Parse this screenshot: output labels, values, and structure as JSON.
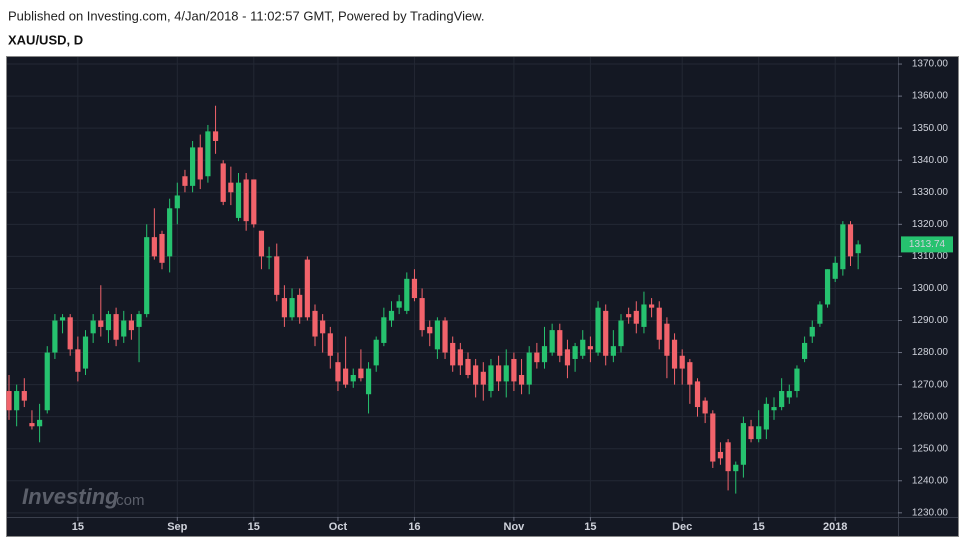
{
  "chart_data": {
    "type": "candlestick",
    "subtitle": "Published on Investing.com, 4/Jan/2018 - 11:02:57 GMT, Powered by TradingView.",
    "title": "XAU/USD, D",
    "watermark": [
      "Investing",
      ".com"
    ],
    "categories": [
      null,
      null,
      null,
      null,
      null,
      null,
      null,
      null,
      null,
      "15",
      null,
      null,
      null,
      null,
      null,
      null,
      null,
      null,
      null,
      null,
      null,
      null,
      "Sep",
      null,
      null,
      null,
      null,
      null,
      null,
      null,
      null,
      null,
      "15",
      null,
      null,
      null,
      null,
      null,
      null,
      null,
      null,
      null,
      null,
      "Oct",
      null,
      null,
      null,
      null,
      null,
      null,
      null,
      null,
      null,
      "16",
      null,
      null,
      null,
      null,
      null,
      null,
      null,
      null,
      null,
      null,
      null,
      null,
      "Nov",
      null,
      null,
      null,
      null,
      null,
      null,
      null,
      null,
      null,
      "15",
      null,
      null,
      null,
      null,
      null,
      null,
      null,
      null,
      null,
      null,
      null,
      "Dec",
      null,
      null,
      null,
      null,
      null,
      null,
      null,
      null,
      null,
      "15",
      null,
      null,
      null,
      null,
      null,
      null,
      null,
      null,
      null,
      "2018",
      null,
      null,
      null
    ],
    "open": [
      1268,
      1262,
      1268,
      1258,
      1257,
      1262,
      1280,
      1290,
      1291,
      1281,
      1275,
      1286,
      1290,
      1287,
      1292,
      1285,
      1290,
      1288,
      1292,
      1316,
      1317,
      1310,
      1325,
      1335,
      1332,
      1344,
      1335,
      1349,
      1339,
      1333,
      1322,
      1334,
      1334,
      1318,
      1310,
      1310,
      1297,
      1291,
      1298,
      1309,
      1293,
      1290,
      1286,
      1277,
      1275,
      1271,
      1275,
      1267,
      1276,
      1283,
      1290,
      1294,
      1293,
      1303,
      1297,
      1288,
      1281,
      1290,
      1283,
      1281,
      1278,
      1276,
      1274,
      1268,
      1276,
      1271,
      1278,
      1273,
      1270,
      1280,
      1277,
      1280,
      1287,
      1281,
      1278,
      1279,
      1282,
      1280,
      1293,
      1279,
      1282,
      1292,
      1293,
      1288,
      1295,
      1294,
      1289,
      1284,
      1279,
      1277,
      1271,
      1265,
      1261,
      1249,
      1252,
      1243,
      1245,
      1257,
      1253,
      1256,
      1262,
      1263,
      1266,
      1268,
      1278,
      1285,
      1289,
      1295,
      1303,
      1306,
      1320,
      1311
    ],
    "high": [
      1273,
      1270,
      1272,
      1262,
      1264,
      1282,
      1292,
      1292,
      1292,
      1285,
      1287,
      1292,
      1301,
      1293,
      1294,
      1293,
      1292,
      1293,
      1320,
      1325,
      1318,
      1328,
      1333,
      1337,
      1346,
      1348,
      1351,
      1357,
      1340,
      1338,
      1336,
      1336,
      1334,
      1318,
      1313,
      1314,
      1301,
      1300,
      1300,
      1310,
      1295,
      1292,
      1288,
      1280,
      1285,
      1275,
      1281,
      1277,
      1285,
      1294,
      1296,
      1298,
      1305,
      1306,
      1300,
      1290,
      1291,
      1291,
      1285,
      1283,
      1280,
      1278,
      1277,
      1278,
      1279,
      1281,
      1280,
      1278,
      1282,
      1283,
      1288,
      1289,
      1289,
      1284,
      1283,
      1287,
      1285,
      1296,
      1295,
      1287,
      1292,
      1294,
      1296,
      1299,
      1297,
      1296,
      1291,
      1286,
      1281,
      1278,
      1272,
      1266,
      1262,
      1252,
      1253,
      1246,
      1260,
      1259,
      1262,
      1266,
      1266,
      1272,
      1270,
      1276,
      1285,
      1290,
      1296,
      1306,
      1310,
      1321,
      1321,
      1315
    ],
    "low": [
      1259,
      1257,
      1263,
      1256,
      1252,
      1261,
      1278,
      1286,
      1279,
      1271,
      1273,
      1283,
      1285,
      1283,
      1282,
      1283,
      1284,
      1277,
      1291,
      1309,
      1306,
      1305,
      1320,
      1330,
      1330,
      1331,
      1333,
      1342,
      1326,
      1326,
      1321,
      1318,
      1319,
      1306,
      1306,
      1296,
      1288,
      1290,
      1289,
      1290,
      1282,
      1280,
      1275,
      1268,
      1269,
      1269,
      1271,
      1261,
      1274,
      1282,
      1288,
      1292,
      1292,
      1296,
      1285,
      1282,
      1278,
      1278,
      1274,
      1273,
      1272,
      1266,
      1265,
      1266,
      1268,
      1266,
      1268,
      1267,
      1267,
      1275,
      1275,
      1279,
      1277,
      1272,
      1274,
      1278,
      1277,
      1279,
      1276,
      1277,
      1280,
      1289,
      1286,
      1286,
      1291,
      1281,
      1272,
      1270,
      1270,
      1264,
      1260,
      1258,
      1244,
      1245,
      1237,
      1236,
      1241,
      1252,
      1252,
      1253,
      1259,
      1262,
      1264,
      1266,
      1277,
      1283,
      1288,
      1294,
      1302,
      1304,
      1307,
      1306
    ],
    "close": [
      1262,
      1268,
      1265,
      1257,
      1259,
      1280,
      1290,
      1291,
      1281,
      1274,
      1285,
      1290,
      1288,
      1292,
      1284,
      1290,
      1287,
      1292,
      1316,
      1310,
      1308,
      1325,
      1329,
      1332,
      1344,
      1334,
      1349,
      1346,
      1327,
      1330,
      1333,
      1321,
      1320,
      1310,
      1310,
      1298,
      1291,
      1297,
      1291,
      1291,
      1285,
      1286,
      1279,
      1271,
      1270,
      1273,
      1272,
      1275,
      1284,
      1291,
      1293,
      1296,
      1303,
      1297,
      1287,
      1286,
      1290,
      1280,
      1276,
      1276,
      1273,
      1270,
      1270,
      1276,
      1271,
      1276,
      1271,
      1270,
      1280,
      1277,
      1282,
      1287,
      1279,
      1276,
      1282,
      1284,
      1281,
      1294,
      1279,
      1282,
      1290,
      1291,
      1289,
      1295,
      1294,
      1284,
      1279,
      1275,
      1275,
      1270,
      1263,
      1261,
      1246,
      1247,
      1243,
      1245,
      1258,
      1253,
      1257,
      1264,
      1263,
      1268,
      1268,
      1275,
      1283,
      1288,
      1295,
      1306,
      1308,
      1320,
      1310,
      1313.74
    ],
    "up_color": "#26c26f",
    "down_color": "#f2636b",
    "background": "#141823",
    "grid": true,
    "ylim": [
      1228.7,
      1372.2
    ],
    "yticks": [
      {
        "value": 1230,
        "label": "1230.00"
      },
      {
        "value": 1240,
        "label": "1240.00"
      },
      {
        "value": 1250,
        "label": "1250.00"
      },
      {
        "value": 1260,
        "label": "1260.00"
      },
      {
        "value": 1270,
        "label": "1270.00"
      },
      {
        "value": 1280,
        "label": "1280.00"
      },
      {
        "value": 1290,
        "label": "1290.00"
      },
      {
        "value": 1300,
        "label": "1300.00"
      },
      {
        "value": 1310,
        "label": "1310.00"
      },
      {
        "value": 1320,
        "label": "1320.00"
      },
      {
        "value": 1330,
        "label": "1330.00"
      },
      {
        "value": 1340,
        "label": "1340.00"
      },
      {
        "value": 1350,
        "label": "1350.00"
      },
      {
        "value": 1360,
        "label": "1360.00"
      },
      {
        "value": 1370,
        "label": "1370.00"
      }
    ]
  }
}
